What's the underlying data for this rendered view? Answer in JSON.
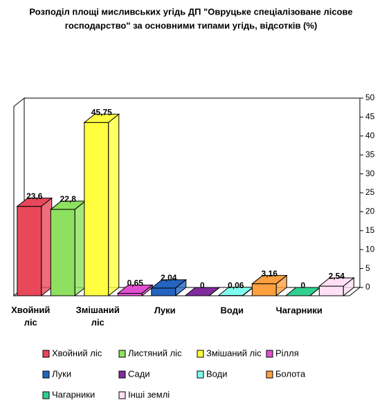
{
  "chart_data": {
    "type": "bar3d",
    "title_lines": [
      "Розподіл площі мисливських угідь ДП \"Овруцьке спеціалізоване лісове",
      "господарство\" за основними типами угідь,  відсотків  (%)"
    ],
    "categories": [
      "Хвойний ліс",
      "Листяний ліс",
      "Змішаний ліс",
      "Рілля",
      "Луки",
      "Сади",
      "Води",
      "Болота",
      "Чагарники",
      "Інші землі"
    ],
    "x_labels": [
      "Хвойний ліс",
      "Змішаний ліс",
      "Луки",
      "Води",
      "Чагарники"
    ],
    "values": [
      23.6,
      22.8,
      45.75,
      0.65,
      2.04,
      0,
      0.06,
      3.16,
      0,
      2.54
    ],
    "value_labels": [
      "23,6",
      "22,8",
      "45,75",
      "0,65",
      "2,04",
      "0",
      "0,06",
      "3,16",
      "0",
      "2,54"
    ],
    "colors": [
      "#e8485a",
      "#8ee060",
      "#ffff40",
      "#e050d0",
      "#2464c0",
      "#802c9c",
      "#80fff0",
      "#ffa040",
      "#30d090",
      "#ffe0f4"
    ],
    "ylim": [
      0,
      50
    ],
    "yticks": [
      0,
      5,
      10,
      15,
      20,
      25,
      30,
      35,
      40,
      45,
      50
    ]
  }
}
